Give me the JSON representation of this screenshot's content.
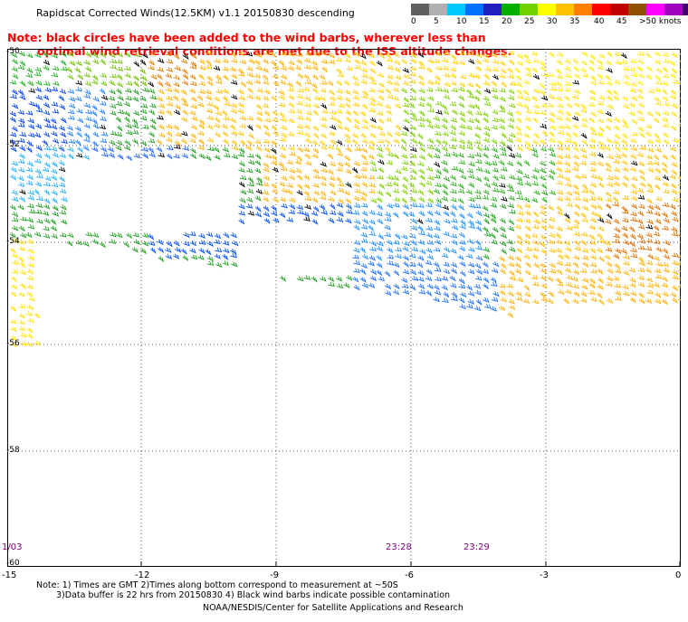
{
  "header": {
    "title": "Rapidscat Corrected Winds(12.5KM) v1.1 20150830 descending"
  },
  "note": {
    "line1": "Note: black circles have been added to the wind barbs, wherever less than",
    "line2": "optimal wind retrieval conditions are met due to the ISS altitude changes."
  },
  "legend": {
    "colors": [
      "#606060",
      "#b0b0b0",
      "#00c8ff",
      "#0070ff",
      "#2020c0",
      "#00b000",
      "#70d000",
      "#ffff00",
      "#ffc000",
      "#ff8000",
      "#ff0000",
      "#c00000",
      "#905000",
      "#ff00ff",
      "#a000c0",
      "#400070"
    ],
    "labels": [
      "0",
      "5",
      "10",
      "15",
      "20",
      "25",
      "30",
      "35",
      "40",
      "45",
      ">50 knots"
    ]
  },
  "map": {
    "y_labels": [
      "-50",
      "-52",
      "-54",
      "-56",
      "-58",
      "-60"
    ],
    "x_labels": [
      "-15",
      "-12",
      "-9",
      "-6",
      "-3",
      "0"
    ],
    "time_labels": [
      "1/03",
      "23:28",
      "23:29"
    ]
  },
  "footer": {
    "note_line1": "Note: 1) Times are GMT 2)Times along bottom correspond to measurement at ~50S",
    "note_line2": "3)Data buffer is 22 hrs from 20150830 4) Black wind barbs indicate possible contamination",
    "credit": "NOAA/NESDIS/Center for Satellite Applications and Research"
  }
}
